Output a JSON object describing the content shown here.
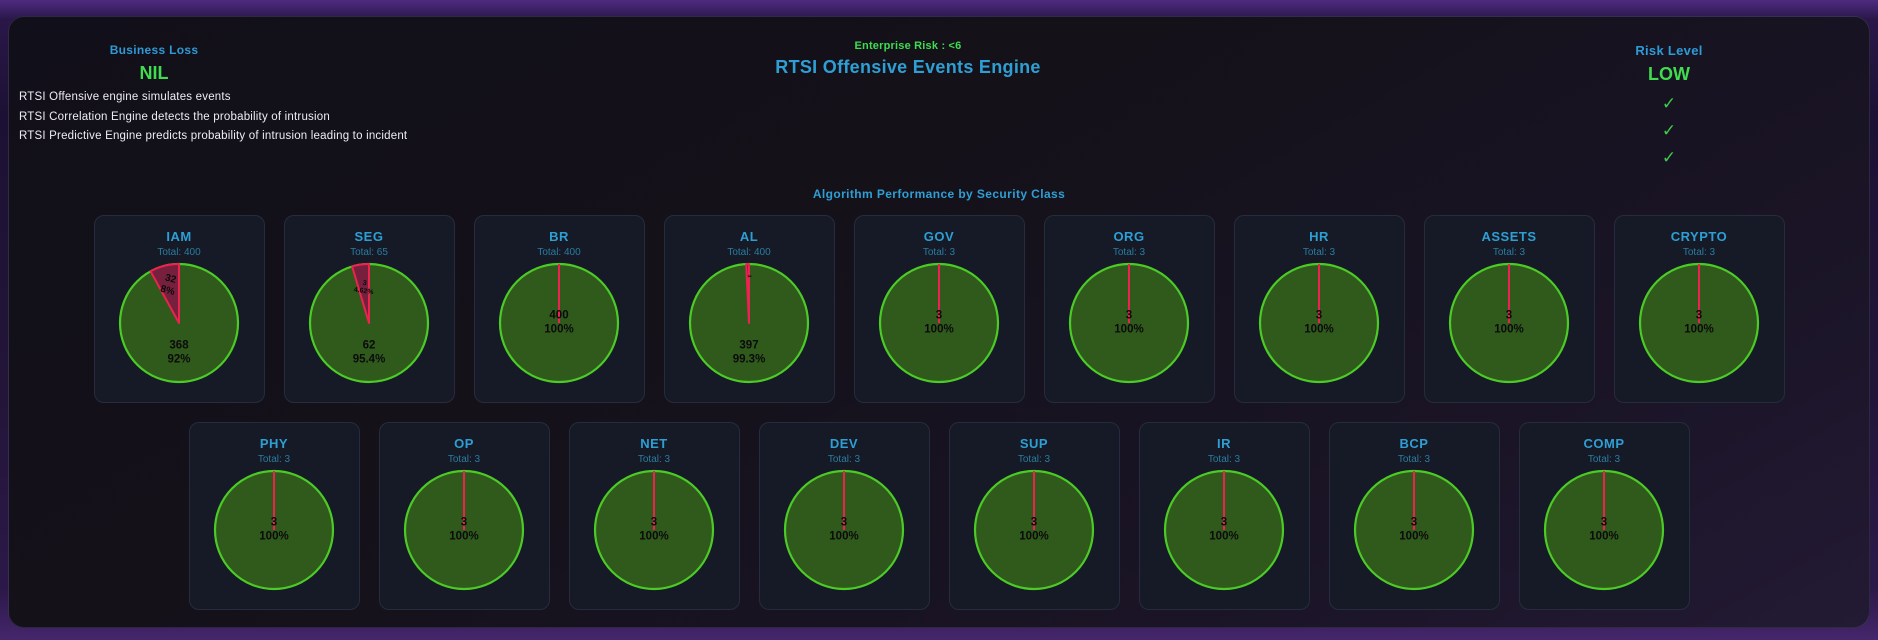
{
  "header": {
    "business_loss_label": "Business Loss",
    "business_loss_value": "NIL",
    "enterprise_risk": "Enterprise Risk : <6",
    "title": "RTSI Offensive Events Engine",
    "risk_level_label": "Risk Level",
    "risk_level_value": "LOW",
    "check_glyph": "✓",
    "descriptions": [
      "RTSI Offensive engine simulates events",
      "RTSI Correlation Engine detects the probability of intrusion",
      "RTSI Predictive Engine predicts probability of intrusion leading to incident"
    ]
  },
  "section_title": "Algorithm Performance by Security Class",
  "colors": {
    "accent_blue": "#2e9fd4",
    "muted_blue": "#2b7c9f",
    "accent_green": "#3fdc4f",
    "check_green": "#3ecb4a",
    "pie_green_fill": "#30591c",
    "pie_green_stroke": "#4ccb27",
    "pie_red_fill": "#76203e",
    "pie_red_stroke": "#ee2150",
    "pie_label_black": "#0b0b0b"
  },
  "chart_data": [
    {
      "type": "pie",
      "row": 1,
      "title": "IAM",
      "total_label": "Total: 400",
      "total": 400,
      "value": 368,
      "value_pct": "92%",
      "red_value": 32,
      "red_pct": "8%",
      "red_fraction": 0.08,
      "red_label_lines": [
        "32",
        "8%"
      ]
    },
    {
      "type": "pie",
      "row": 1,
      "title": "SEG",
      "total_label": "Total: 65",
      "total": 65,
      "value": 62,
      "value_pct": "95.4%",
      "red_value": 3,
      "red_pct": "4.62%",
      "red_fraction": 0.0462,
      "red_label_lines": [
        "3",
        "4.62%"
      ]
    },
    {
      "type": "pie",
      "row": 1,
      "title": "BR",
      "total_label": "Total: 400",
      "total": 400,
      "value": 400,
      "value_pct": "100%",
      "red_value": 0,
      "red_pct": "0%",
      "red_fraction": 0,
      "red_label_lines": []
    },
    {
      "type": "pie",
      "row": 1,
      "title": "AL",
      "total_label": "Total: 400",
      "total": 400,
      "value": 397,
      "value_pct": "99.3%",
      "red_value": 3,
      "red_pct": "0.75%",
      "red_fraction": 0.0075,
      "red_label_lines": [
        "3"
      ]
    },
    {
      "type": "pie",
      "row": 1,
      "title": "GOV",
      "total_label": "Total: 3",
      "total": 3,
      "value": 3,
      "value_pct": "100%",
      "red_value": 0,
      "red_pct": "0%",
      "red_fraction": 0,
      "red_label_lines": []
    },
    {
      "type": "pie",
      "row": 1,
      "title": "ORG",
      "total_label": "Total: 3",
      "total": 3,
      "value": 3,
      "value_pct": "100%",
      "red_value": 0,
      "red_pct": "0%",
      "red_fraction": 0,
      "red_label_lines": []
    },
    {
      "type": "pie",
      "row": 1,
      "title": "HR",
      "total_label": "Total: 3",
      "total": 3,
      "value": 3,
      "value_pct": "100%",
      "red_value": 0,
      "red_pct": "0%",
      "red_fraction": 0,
      "red_label_lines": []
    },
    {
      "type": "pie",
      "row": 1,
      "title": "ASSETS",
      "total_label": "Total: 3",
      "total": 3,
      "value": 3,
      "value_pct": "100%",
      "red_value": 0,
      "red_pct": "0%",
      "red_fraction": 0,
      "red_label_lines": []
    },
    {
      "type": "pie",
      "row": 1,
      "title": "CRYPTO",
      "total_label": "Total: 3",
      "total": 3,
      "value": 3,
      "value_pct": "100%",
      "red_value": 0,
      "red_pct": "0%",
      "red_fraction": 0,
      "red_label_lines": []
    },
    {
      "type": "pie",
      "row": 2,
      "title": "PHY",
      "total_label": "Total: 3",
      "total": 3,
      "value": 3,
      "value_pct": "100%",
      "red_value": 0,
      "red_pct": "0%",
      "red_fraction": 0,
      "red_label_lines": []
    },
    {
      "type": "pie",
      "row": 2,
      "title": "OP",
      "total_label": "Total: 3",
      "total": 3,
      "value": 3,
      "value_pct": "100%",
      "red_value": 0,
      "red_pct": "0%",
      "red_fraction": 0,
      "red_label_lines": []
    },
    {
      "type": "pie",
      "row": 2,
      "title": "NET",
      "total_label": "Total: 3",
      "total": 3,
      "value": 3,
      "value_pct": "100%",
      "red_value": 0,
      "red_pct": "0%",
      "red_fraction": 0,
      "red_label_lines": []
    },
    {
      "type": "pie",
      "row": 2,
      "title": "DEV",
      "total_label": "Total: 3",
      "total": 3,
      "value": 3,
      "value_pct": "100%",
      "red_value": 0,
      "red_pct": "0%",
      "red_fraction": 0,
      "red_label_lines": []
    },
    {
      "type": "pie",
      "row": 2,
      "title": "SUP",
      "total_label": "Total: 3",
      "total": 3,
      "value": 3,
      "value_pct": "100%",
      "red_value": 0,
      "red_pct": "0%",
      "red_fraction": 0,
      "red_label_lines": []
    },
    {
      "type": "pie",
      "row": 2,
      "title": "IR",
      "total_label": "Total: 3",
      "total": 3,
      "value": 3,
      "value_pct": "100%",
      "red_value": 0,
      "red_pct": "0%",
      "red_fraction": 0,
      "red_label_lines": []
    },
    {
      "type": "pie",
      "row": 2,
      "title": "BCP",
      "total_label": "Total: 3",
      "total": 3,
      "value": 3,
      "value_pct": "100%",
      "red_value": 0,
      "red_pct": "0%",
      "red_fraction": 0,
      "red_label_lines": []
    },
    {
      "type": "pie",
      "row": 2,
      "title": "COMP",
      "total_label": "Total: 3",
      "total": 3,
      "value": 3,
      "value_pct": "100%",
      "red_value": 0,
      "red_pct": "0%",
      "red_fraction": 0,
      "red_label_lines": []
    }
  ]
}
